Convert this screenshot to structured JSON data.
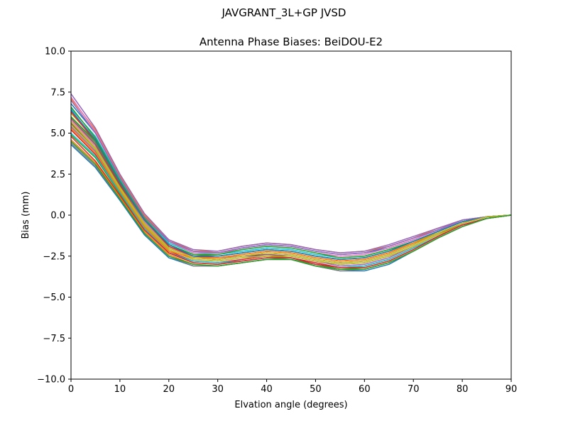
{
  "suptitle": "JAVGRANT_3L+GP  JVSD",
  "chart_data": {
    "type": "line",
    "title": "Antenna Phase Biases: BeiDOU-E2",
    "xlabel": "Elvation angle (degrees)",
    "ylabel": "Bias (mm)",
    "xlim": [
      0,
      90
    ],
    "ylim": [
      -10,
      10
    ],
    "xticks": [
      0,
      10,
      20,
      30,
      40,
      50,
      60,
      70,
      80,
      90
    ],
    "xtick_labels": [
      "0",
      "10",
      "20",
      "30",
      "40",
      "50",
      "60",
      "70",
      "80",
      "90"
    ],
    "yticks": [
      -10,
      -7.5,
      -5,
      -2.5,
      0,
      2.5,
      5,
      7.5,
      10
    ],
    "ytick_labels": [
      "−10.0",
      "−7.5",
      "−5.0",
      "−2.5",
      "0.0",
      "2.5",
      "5.0",
      "7.5",
      "10.0"
    ],
    "grid": false,
    "x": [
      0,
      5,
      10,
      15,
      20,
      25,
      30,
      35,
      40,
      45,
      50,
      55,
      60,
      65,
      70,
      75,
      80,
      85,
      90
    ],
    "series": [
      {
        "color": "#1f77b4",
        "values": [
          4.3,
          2.9,
          0.9,
          -1.2,
          -2.6,
          -3.1,
          -3.1,
          -2.9,
          -2.7,
          -2.7,
          -3.1,
          -3.4,
          -3.4,
          -3.0,
          -2.2,
          -1.4,
          -0.7,
          -0.2,
          0.0
        ]
      },
      {
        "color": "#ff7f0e",
        "values": [
          4.6,
          3.2,
          1.1,
          -1.0,
          -2.4,
          -3.0,
          -3.1,
          -2.9,
          -2.7,
          -2.7,
          -3.1,
          -3.3,
          -3.3,
          -2.9,
          -2.2,
          -1.4,
          -0.7,
          -0.2,
          0.0
        ]
      },
      {
        "color": "#2ca02c",
        "values": [
          4.9,
          3.5,
          1.3,
          -0.8,
          -2.3,
          -2.9,
          -3.0,
          -2.8,
          -2.6,
          -2.7,
          -3.0,
          -3.3,
          -3.2,
          -2.8,
          -2.1,
          -1.3,
          -0.6,
          -0.2,
          0.0
        ]
      },
      {
        "color": "#d62728",
        "values": [
          5.2,
          3.7,
          1.5,
          -0.7,
          -2.2,
          -2.8,
          -2.9,
          -2.7,
          -2.5,
          -2.6,
          -2.9,
          -3.2,
          -3.1,
          -2.7,
          -2.0,
          -1.3,
          -0.6,
          -0.2,
          0.0
        ]
      },
      {
        "color": "#9467bd",
        "values": [
          5.4,
          3.9,
          1.6,
          -0.6,
          -2.1,
          -2.7,
          -2.8,
          -2.6,
          -2.4,
          -2.5,
          -2.8,
          -3.1,
          -3.0,
          -2.6,
          -1.9,
          -1.2,
          -0.6,
          -0.2,
          0.0
        ]
      },
      {
        "color": "#8c564b",
        "values": [
          5.6,
          4.0,
          1.7,
          -0.5,
          -2.0,
          -2.6,
          -2.7,
          -2.5,
          -2.4,
          -2.5,
          -2.8,
          -3.0,
          -2.9,
          -2.5,
          -1.9,
          -1.2,
          -0.5,
          -0.1,
          0.0
        ]
      },
      {
        "color": "#e377c2",
        "values": [
          5.8,
          4.2,
          1.8,
          -0.4,
          -2.0,
          -2.5,
          -2.6,
          -2.5,
          -2.3,
          -2.4,
          -2.7,
          -2.9,
          -2.8,
          -2.4,
          -1.8,
          -1.1,
          -0.5,
          -0.1,
          0.0
        ]
      },
      {
        "color": "#7f7f7f",
        "values": [
          6.0,
          4.4,
          1.9,
          -0.3,
          -1.9,
          -2.5,
          -2.6,
          -2.4,
          -2.2,
          -2.3,
          -2.6,
          -2.8,
          -2.7,
          -2.3,
          -1.7,
          -1.1,
          -0.5,
          -0.1,
          0.0
        ]
      },
      {
        "color": "#bcbd22",
        "values": [
          6.2,
          4.6,
          2.0,
          -0.2,
          -1.8,
          -2.4,
          -2.5,
          -2.3,
          -2.1,
          -2.2,
          -2.5,
          -2.7,
          -2.6,
          -2.2,
          -1.7,
          -1.0,
          -0.4,
          -0.1,
          0.0
        ]
      },
      {
        "color": "#17becf",
        "values": [
          6.5,
          4.8,
          2.2,
          -0.1,
          -1.7,
          -2.3,
          -2.4,
          -2.2,
          -2.0,
          -2.1,
          -2.4,
          -2.6,
          -2.5,
          -2.1,
          -1.6,
          -1.0,
          -0.4,
          -0.1,
          0.0
        ]
      },
      {
        "color": "#1f77b4",
        "values": [
          6.8,
          5.0,
          2.3,
          0.0,
          -1.6,
          -2.2,
          -2.3,
          -2.0,
          -1.8,
          -1.9,
          -2.2,
          -2.4,
          -2.3,
          -2.0,
          -1.5,
          -0.9,
          -0.4,
          -0.1,
          0.0
        ]
      },
      {
        "color": "#ff7f0e",
        "values": [
          7.1,
          5.2,
          2.4,
          0.0,
          -1.5,
          -2.2,
          -2.2,
          -1.9,
          -1.7,
          -1.8,
          -2.1,
          -2.3,
          -2.2,
          -1.9,
          -1.4,
          -0.8,
          -0.3,
          -0.1,
          0.0
        ]
      },
      {
        "color": "#9467bd",
        "values": [
          7.4,
          5.3,
          2.5,
          0.1,
          -1.5,
          -2.1,
          -2.2,
          -1.9,
          -1.7,
          -1.8,
          -2.1,
          -2.3,
          -2.2,
          -1.8,
          -1.3,
          -0.8,
          -0.3,
          -0.1,
          0.0
        ]
      },
      {
        "color": "#e377c2",
        "values": [
          7.2,
          5.1,
          2.3,
          -0.1,
          -1.6,
          -2.3,
          -2.3,
          -2.1,
          -1.9,
          -2.0,
          -2.3,
          -2.5,
          -2.4,
          -2.0,
          -1.5,
          -0.9,
          -0.4,
          -0.1,
          0.0
        ]
      },
      {
        "color": "#2ca02c",
        "values": [
          6.6,
          4.7,
          2.1,
          -0.2,
          -1.8,
          -2.4,
          -2.5,
          -2.3,
          -2.1,
          -2.2,
          -2.5,
          -2.7,
          -2.6,
          -2.2,
          -1.6,
          -1.0,
          -0.4,
          -0.1,
          0.0
        ]
      },
      {
        "color": "#d62728",
        "values": [
          6.3,
          4.5,
          1.9,
          -0.3,
          -1.9,
          -2.5,
          -2.6,
          -2.4,
          -2.2,
          -2.3,
          -2.6,
          -2.8,
          -2.7,
          -2.3,
          -1.7,
          -1.1,
          -0.5,
          -0.1,
          0.0
        ]
      },
      {
        "color": "#8c564b",
        "values": [
          5.9,
          4.3,
          1.8,
          -0.5,
          -2.0,
          -2.6,
          -2.7,
          -2.5,
          -2.3,
          -2.4,
          -2.7,
          -2.9,
          -2.8,
          -2.4,
          -1.8,
          -1.1,
          -0.5,
          -0.1,
          0.0
        ]
      },
      {
        "color": "#bcbd22",
        "values": [
          5.5,
          4.0,
          1.6,
          -0.6,
          -2.1,
          -2.7,
          -2.8,
          -2.6,
          -2.5,
          -2.5,
          -2.8,
          -3.0,
          -2.9,
          -2.5,
          -1.9,
          -1.2,
          -0.6,
          -0.2,
          0.0
        ]
      },
      {
        "color": "#17becf",
        "values": [
          5.0,
          3.6,
          1.4,
          -0.8,
          -2.3,
          -2.8,
          -2.9,
          -2.8,
          -2.6,
          -2.6,
          -3.0,
          -3.2,
          -3.1,
          -2.7,
          -2.0,
          -1.3,
          -0.6,
          -0.2,
          0.0
        ]
      },
      {
        "color": "#7f7f7f",
        "values": [
          4.4,
          3.0,
          1.0,
          -1.1,
          -2.5,
          -3.1,
          -3.1,
          -2.9,
          -2.7,
          -2.7,
          -3.1,
          -3.4,
          -3.3,
          -2.9,
          -2.2,
          -1.4,
          -0.7,
          -0.2,
          0.0
        ]
      },
      {
        "color": "#2ca02c",
        "values": [
          6.0,
          4.5,
          2.0,
          -0.3,
          -1.8,
          -2.4,
          -2.4,
          -2.1,
          -1.9,
          -2.0,
          -2.3,
          -2.6,
          -2.5,
          -2.1,
          -1.6,
          -1.0,
          -0.4,
          -0.1,
          0.0
        ]
      },
      {
        "color": "#ff7f0e",
        "values": [
          5.3,
          3.8,
          1.5,
          -0.7,
          -2.2,
          -2.6,
          -2.6,
          -2.4,
          -2.2,
          -2.3,
          -2.6,
          -2.8,
          -2.7,
          -2.3,
          -1.7,
          -1.1,
          -0.5,
          -0.1,
          0.0
        ]
      },
      {
        "color": "#d62728",
        "values": [
          4.8,
          3.3,
          1.2,
          -0.9,
          -2.3,
          -2.9,
          -3.0,
          -2.8,
          -2.6,
          -2.6,
          -3.0,
          -3.2,
          -3.2,
          -2.8,
          -2.1,
          -1.3,
          -0.6,
          -0.2,
          0.0
        ]
      },
      {
        "color": "#9467bd",
        "values": [
          7.0,
          5.0,
          2.3,
          -0.1,
          -1.6,
          -2.2,
          -2.3,
          -2.0,
          -1.8,
          -1.9,
          -2.2,
          -2.4,
          -2.3,
          -1.9,
          -1.4,
          -0.9,
          -0.3,
          -0.1,
          0.0
        ]
      },
      {
        "color": "#1f77b4",
        "values": [
          6.4,
          4.6,
          2.0,
          -0.3,
          -1.8,
          -2.5,
          -2.5,
          -2.3,
          -2.1,
          -2.2,
          -2.5,
          -2.7,
          -2.6,
          -2.2,
          -1.6,
          -1.0,
          -0.4,
          -0.1,
          0.0
        ]
      },
      {
        "color": "#bcbd22",
        "values": [
          5.7,
          4.1,
          1.7,
          -0.5,
          -2.0,
          -2.6,
          -2.7,
          -2.5,
          -2.3,
          -2.4,
          -2.7,
          -2.9,
          -2.8,
          -2.4,
          -1.8,
          -1.1,
          -0.5,
          -0.1,
          0.0
        ]
      },
      {
        "color": "#2ca02c",
        "values": [
          4.5,
          3.1,
          1.0,
          -1.1,
          -2.5,
          -3.0,
          -3.1,
          -2.9,
          -2.7,
          -2.7,
          -3.1,
          -3.3,
          -3.3,
          -2.9,
          -2.2,
          -1.4,
          -0.7,
          -0.2,
          0.0
        ]
      }
    ]
  }
}
